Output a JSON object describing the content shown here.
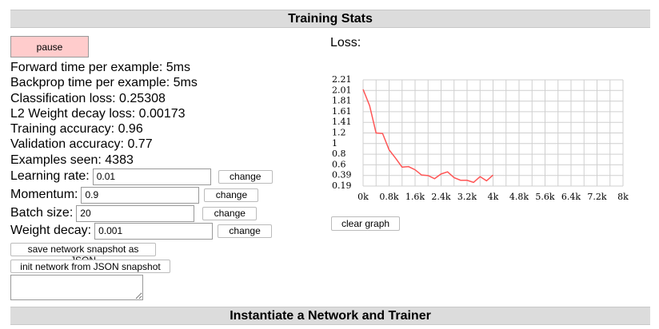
{
  "sections": {
    "top_title": "Training Stats",
    "bottom_title": "Instantiate a Network and Trainer"
  },
  "controls": {
    "pause_label": "pause",
    "clear_graph_label": "clear graph",
    "save_snapshot_label": "save network snapshot as JSON",
    "init_snapshot_label": "init network from JSON snapshot"
  },
  "stats": {
    "forward_time": "Forward time per example: 5ms",
    "backprop_time": "Backprop time per example: 5ms",
    "classification_loss": "Classification loss: 0.25308",
    "l2_loss": "L2 Weight decay loss: 0.00173",
    "training_accuracy": "Training accuracy: 0.96",
    "validation_accuracy": "Validation accuracy: 0.77",
    "examples_seen": "Examples seen: 4383"
  },
  "params": {
    "learning_rate": {
      "label": "Learning rate:",
      "value": "0.01",
      "button": "change"
    },
    "momentum": {
      "label": "Momentum:",
      "value": "0.9",
      "button": "change"
    },
    "batch_size": {
      "label": "Batch size:",
      "value": "20",
      "button": "change"
    },
    "weight_decay": {
      "label": "Weight decay:",
      "value": "0.001",
      "button": "change"
    }
  },
  "chart_data": {
    "type": "line",
    "title": "Loss:",
    "xlabel": "",
    "ylabel": "",
    "xlim": [
      0,
      8000
    ],
    "ylim": [
      0.19,
      2.21
    ],
    "x_ticks": [
      "0k",
      "0.8k",
      "1.6k",
      "2.4k",
      "3.2k",
      "4k",
      "4.8k",
      "5.6k",
      "6.4k",
      "7.2k",
      "8k"
    ],
    "y_ticks": [
      "2.21",
      "2.01",
      "1.81",
      "1.61",
      "1.41",
      "1.2",
      "1",
      "0.8",
      "0.6",
      "0.39",
      "0.19"
    ],
    "grid": true,
    "series": [
      {
        "color": "#ff5555",
        "x": [
          0,
          200,
          400,
          600,
          800,
          1000,
          1200,
          1400,
          1600,
          1800,
          2000,
          2200,
          2400,
          2600,
          2800,
          3000,
          3200,
          3400,
          3600,
          3800,
          4000
        ],
        "y": [
          2.03,
          1.72,
          1.2,
          1.19,
          0.88,
          0.72,
          0.55,
          0.56,
          0.5,
          0.4,
          0.39,
          0.33,
          0.42,
          0.46,
          0.35,
          0.3,
          0.3,
          0.26,
          0.37,
          0.29,
          0.4
        ]
      }
    ]
  }
}
